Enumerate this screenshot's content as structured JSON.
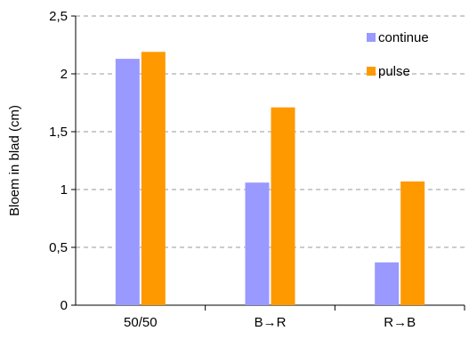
{
  "chart_data": {
    "type": "bar",
    "categories": [
      "50/50",
      "B→R",
      "R→B"
    ],
    "series": [
      {
        "name": "continue",
        "values": [
          2.13,
          1.06,
          0.37
        ],
        "color": "#9999ff"
      },
      {
        "name": "pulse",
        "values": [
          2.19,
          1.71,
          1.07
        ],
        "color": "#ff9900"
      }
    ],
    "title": "",
    "xlabel": "",
    "ylabel": "Bloem in blad (cm)",
    "ylim": [
      0,
      2.5
    ],
    "yticks": [
      "0",
      "0,5",
      "1",
      "1,5",
      "2",
      "2,5"
    ],
    "grid": true,
    "legend": "top-right"
  }
}
